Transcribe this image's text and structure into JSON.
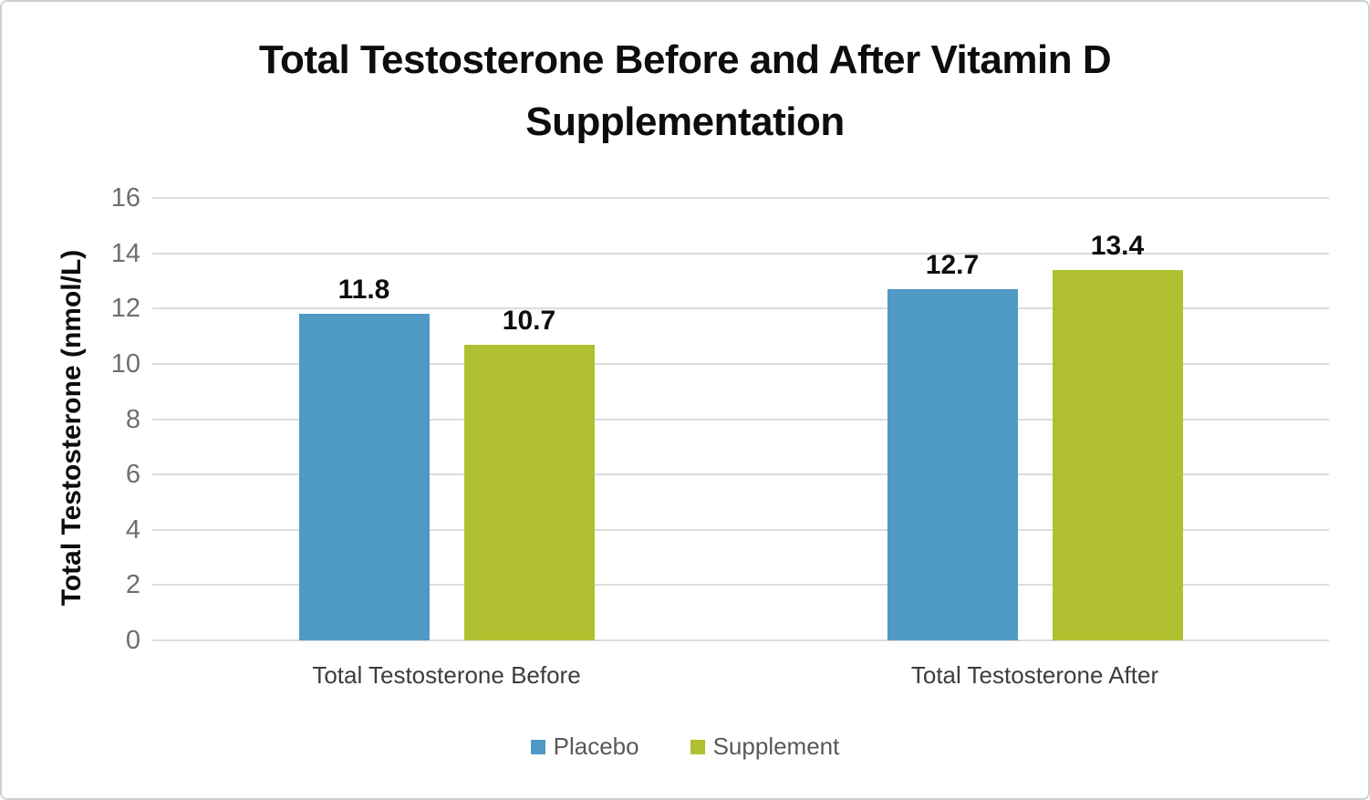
{
  "chart_data": {
    "type": "bar",
    "title": "Total Testosterone Before and After Vitamin D Supplementation",
    "categories": [
      "Total Testosterone Before",
      "Total Testosterone After"
    ],
    "series": [
      {
        "name": "Placebo",
        "color": "#4f9ac4",
        "values": [
          11.8,
          12.7
        ]
      },
      {
        "name": "Supplement",
        "color": "#b1c031",
        "values": [
          10.7,
          13.4
        ]
      }
    ],
    "xlabel": "",
    "ylabel": "Total Testosterone (nmol/L)",
    "ylim": [
      0,
      16
    ],
    "yticks": [
      0,
      2,
      4,
      6,
      8,
      10,
      12,
      14,
      16
    ],
    "grid": true,
    "gridline_color": "#dcdcdc",
    "legend_position": "bottom",
    "data_labels_shown": true
  }
}
